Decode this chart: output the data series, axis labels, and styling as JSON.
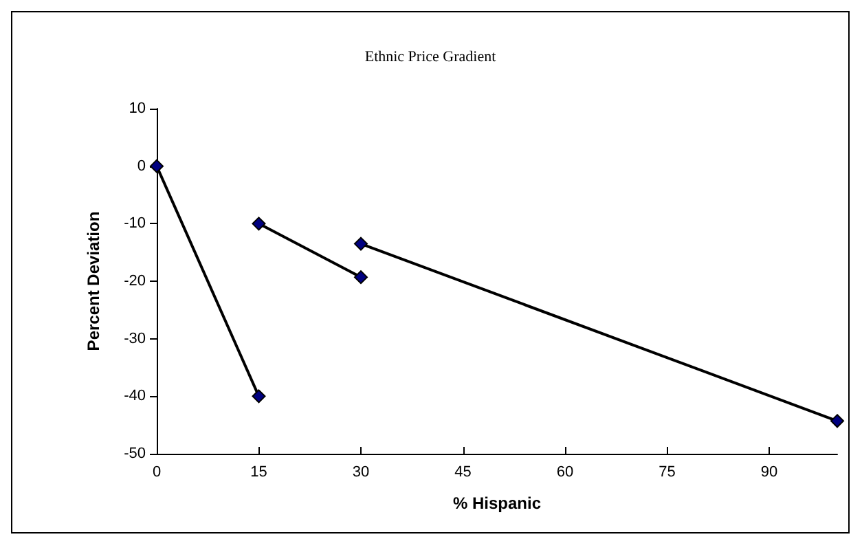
{
  "chart_data": {
    "type": "line",
    "title": "Ethnic Price Gradient",
    "xlabel": "% Hispanic",
    "ylabel": "Percent Deviation",
    "series": [
      {
        "color": "#000080",
        "x": [
          0,
          15
        ],
        "values": [
          0,
          -40
        ]
      },
      {
        "color": "#000080",
        "x": [
          15,
          30
        ],
        "values": [
          -10,
          -19.3
        ]
      },
      {
        "color": "#000080",
        "x": [
          30,
          100
        ],
        "values": [
          -13.5,
          -44.3
        ]
      }
    ],
    "xlim": [
      0,
      100
    ],
    "xticks": [
      0,
      15,
      30,
      45,
      60,
      75,
      90
    ],
    "ylim": [
      -50,
      10
    ],
    "yticks": [
      -50,
      -40,
      -30,
      -20,
      -10,
      0,
      10
    ],
    "grid": false,
    "marker": "diamond",
    "line_style": "solid"
  }
}
